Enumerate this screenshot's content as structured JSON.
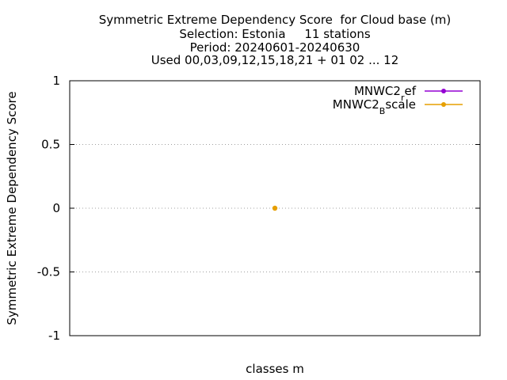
{
  "chart_data": {
    "type": "scatter",
    "title_lines": [
      "Symmetric Extreme Dependency Score  for Cloud base (m)",
      "Selection: Estonia     11 stations",
      "Period: 20240601-20240630",
      "Used 00,03,09,12,15,18,21 + 01 02 ... 12"
    ],
    "xlabel": "classes m",
    "ylabel": "Symmetric Extreme Dependency Score",
    "ylim": [
      -1,
      1
    ],
    "yticks": [
      1,
      0.5,
      0,
      -0.5,
      -1
    ],
    "ytick_labels": [
      "1",
      "0.5",
      "0",
      "-0.5",
      "-1"
    ],
    "grid": "y-dotted",
    "legend_placement": "top-right",
    "series": [
      {
        "name_base": "MNWC2",
        "name_sub": "r",
        "name_rest": "ef",
        "color": "#9400d3",
        "points": []
      },
      {
        "name_base": "MNWC2",
        "name_sub": "B",
        "name_rest": "scale",
        "color": "#e69f00",
        "points": [
          {
            "x": 0,
            "y": 0
          }
        ]
      }
    ],
    "xlim": [
      -1,
      1
    ]
  }
}
